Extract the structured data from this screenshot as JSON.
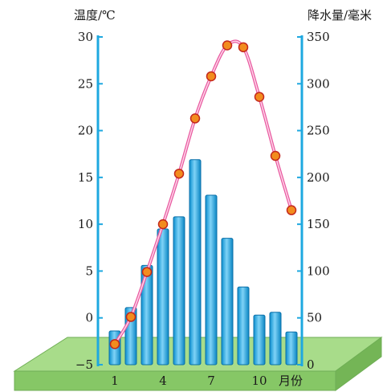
{
  "chart_data": {
    "type": "bar-line",
    "months": [
      1,
      2,
      3,
      4,
      5,
      6,
      7,
      8,
      9,
      10,
      11,
      12
    ],
    "x_tick_labels": [
      "1",
      "4",
      "7",
      "10"
    ],
    "x_tick_months": [
      1,
      4,
      7,
      10
    ],
    "x_unit": "月份",
    "temperature": {
      "axis_title": "温度/℃",
      "values": [
        -2.8,
        0.1,
        4.9,
        10.0,
        15.4,
        21.3,
        25.8,
        29.1,
        28.9,
        23.6,
        17.3,
        11.5
      ],
      "ylim": [
        -5,
        30
      ],
      "ticks": [
        -5,
        0,
        5,
        10,
        15,
        20,
        25,
        30
      ],
      "color": "#e85aa0",
      "marker_color": "#f28c1e"
    },
    "precipitation": {
      "axis_title": "降水量/毫米",
      "values": [
        36,
        61,
        106,
        145,
        158,
        219,
        181,
        135,
        83,
        53,
        56,
        35
      ],
      "ylim": [
        0,
        350
      ],
      "ticks": [
        0,
        50,
        100,
        150,
        200,
        250,
        300,
        350
      ],
      "color": "#1eaee8"
    },
    "ground_color": "#8fcf70"
  }
}
